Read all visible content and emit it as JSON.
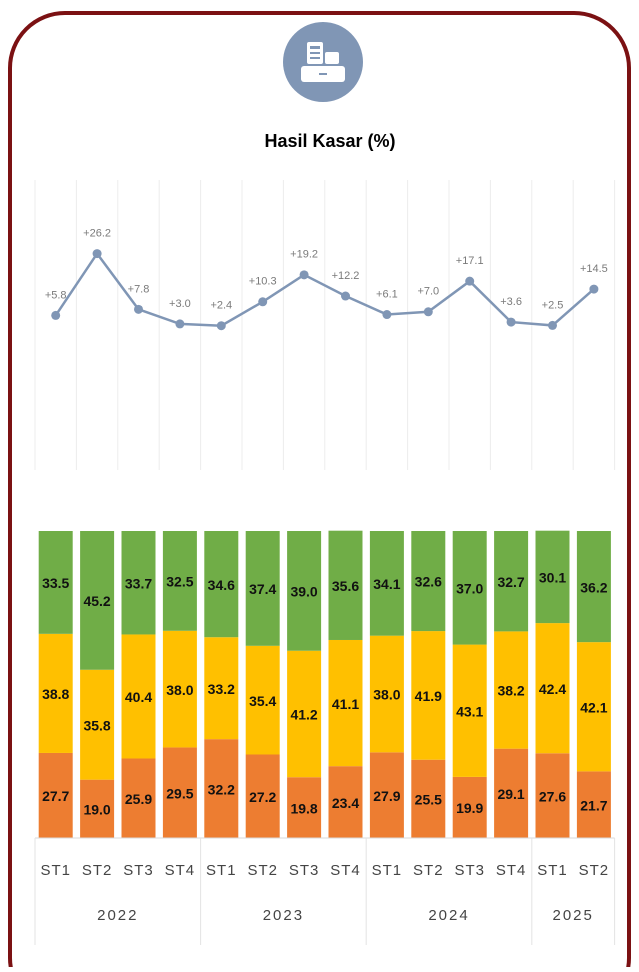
{
  "chart_data": [
    {
      "type": "line",
      "title": "Hasil Kasar (%)",
      "color": "#8096b5",
      "values": [
        5.8,
        26.2,
        7.8,
        3.0,
        2.4,
        10.3,
        19.2,
        12.2,
        6.1,
        7.0,
        17.1,
        3.6,
        2.5,
        14.5
      ],
      "value_labels": [
        "+5.8",
        "+26.2",
        "+7.8",
        "+3.0",
        "+2.4",
        "+10.3",
        "+19.2",
        "+12.2",
        "+6.1",
        "+7.0",
        "+17.1",
        "+3.6",
        "+2.5",
        "+14.5"
      ]
    },
    {
      "type": "bar",
      "stacked": true,
      "groups": [
        {
          "name": "2022",
          "categories": [
            "ST1",
            "ST2",
            "ST3",
            "ST4"
          ]
        },
        {
          "name": "2023",
          "categories": [
            "ST1",
            "ST2",
            "ST3",
            "ST4"
          ]
        },
        {
          "name": "2024",
          "categories": [
            "ST1",
            "ST2",
            "ST3",
            "ST4"
          ]
        },
        {
          "name": "2025",
          "categories": [
            "ST1",
            "ST2"
          ]
        }
      ],
      "series": [
        {
          "color": "#ed7d31",
          "values": [
            27.7,
            19.0,
            25.9,
            29.5,
            32.2,
            27.2,
            19.8,
            23.4,
            27.9,
            25.5,
            19.9,
            29.1,
            27.6,
            21.7
          ],
          "value_labels": [
            "27.7",
            "19.0",
            "25.9",
            "29.5",
            "32.2",
            "27.2",
            "19.8",
            "23.4",
            "27.9",
            "25.5",
            "19.9",
            "29.1",
            "27.6",
            "21.7"
          ]
        },
        {
          "color": "#ffc000",
          "values": [
            38.8,
            35.8,
            40.4,
            38.0,
            33.2,
            35.4,
            41.2,
            41.1,
            38.0,
            41.9,
            43.1,
            38.2,
            42.4,
            42.1
          ],
          "value_labels": [
            "38.8",
            "35.8",
            "40.4",
            "38.0",
            "33.2",
            "35.4",
            "41.2",
            "41.1",
            "38.0",
            "41.9",
            "43.1",
            "38.2",
            "42.4",
            "42.1"
          ]
        },
        {
          "color": "#70ad47",
          "values": [
            33.5,
            45.2,
            33.7,
            32.5,
            34.6,
            37.4,
            39.0,
            35.6,
            34.1,
            32.6,
            37.0,
            32.7,
            30.1,
            36.2
          ],
          "value_labels": [
            "33.5",
            "45.2",
            "33.7",
            "32.5",
            "34.6",
            "37.4",
            "39.0",
            "35.6",
            "34.1",
            "32.6",
            "37.0",
            "32.7",
            "30.1",
            "36.2"
          ]
        }
      ]
    }
  ]
}
